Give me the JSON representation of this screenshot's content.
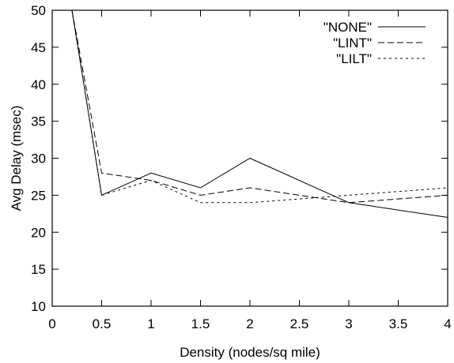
{
  "chart_data": {
    "type": "line",
    "xlabel": "Density (nodes/sq mile)",
    "ylabel": "Avg Delay (msec)",
    "xlim": [
      0,
      4
    ],
    "ylim": [
      10,
      50
    ],
    "xticks": [
      "0",
      "0.5",
      "1",
      "1.5",
      "2",
      "2.5",
      "3",
      "3.5",
      "4"
    ],
    "yticks": [
      "10",
      "15",
      "20",
      "25",
      "30",
      "35",
      "40",
      "45",
      "50"
    ],
    "grid": false,
    "legend_position": "top-right",
    "series": [
      {
        "name": "\"NONE\"",
        "dash": "solid",
        "x": [
          0.2,
          0.5,
          1,
          1.5,
          2,
          3,
          4
        ],
        "y": [
          50,
          25,
          28,
          26,
          30,
          24,
          22
        ]
      },
      {
        "name": "\"LINT\"",
        "dash": "dashed",
        "x": [
          0.2,
          0.5,
          1,
          1.5,
          2,
          3,
          4
        ],
        "y": [
          50,
          28,
          27,
          25,
          26,
          24,
          25
        ]
      },
      {
        "name": "\"LILT\"",
        "dash": "dotted",
        "x": [
          0.2,
          0.5,
          1,
          1.5,
          2,
          3,
          4
        ],
        "y": [
          50,
          25,
          27,
          24,
          24,
          25,
          26
        ]
      }
    ]
  }
}
